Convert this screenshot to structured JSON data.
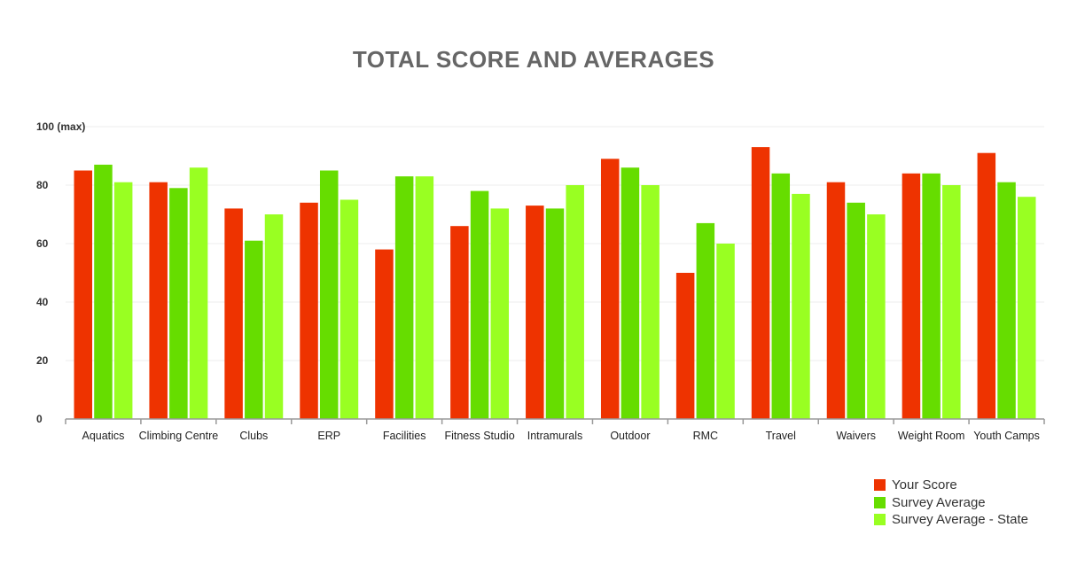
{
  "chart_data": {
    "type": "bar",
    "title": "TOTAL SCORE AND AVERAGES",
    "xlabel": "",
    "ylabel": "",
    "ylim": [
      0,
      100
    ],
    "yticks": [
      {
        "value": 0,
        "label": "0"
      },
      {
        "value": 20,
        "label": "20"
      },
      {
        "value": 40,
        "label": "40"
      },
      {
        "value": 60,
        "label": "60"
      },
      {
        "value": 80,
        "label": "80"
      },
      {
        "value": 100,
        "label": "100 (max)"
      }
    ],
    "categories": [
      "Aquatics",
      "Climbing Centre",
      "Clubs",
      "ERP",
      "Facilities",
      "Fitness Studio",
      "Intramurals",
      "Outdoor",
      "RMC",
      "Travel",
      "Waivers",
      "Weight Room",
      "Youth Camps"
    ],
    "series": [
      {
        "name": "Your Score",
        "color": "#ee3300",
        "values": [
          85,
          81,
          72,
          74,
          58,
          66,
          73,
          89,
          50,
          93,
          81,
          84,
          91
        ]
      },
      {
        "name": "Survey Average",
        "color": "#66dd00",
        "values": [
          87,
          79,
          61,
          85,
          83,
          78,
          72,
          86,
          67,
          84,
          74,
          84,
          81
        ]
      },
      {
        "name": "Survey Average - State",
        "color": "#99ff22",
        "values": [
          81,
          86,
          70,
          75,
          83,
          72,
          80,
          80,
          60,
          77,
          70,
          80,
          76
        ]
      }
    ],
    "grid": true,
    "legend_position": "bottom-right"
  }
}
